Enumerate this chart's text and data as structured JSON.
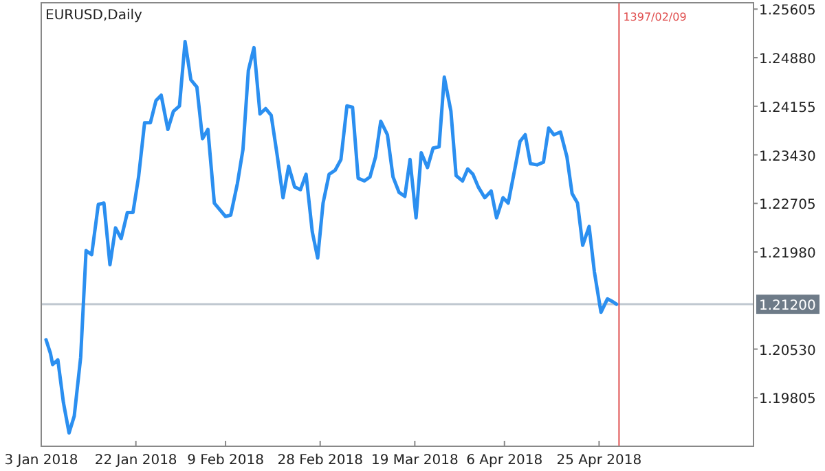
{
  "chart_data": {
    "type": "line",
    "title": "EURUSD,Daily",
    "x": [
      "2018-01-03T23:00",
      "2018-01-04T20:00",
      "2018-01-05T07:00",
      "2018-01-06T08:00",
      "2018-01-07T11:00",
      "2018-01-08T14:00",
      "2018-01-09T15:00",
      "2018-01-10T22:00",
      "2018-01-12T00:00",
      "2018-01-13T03:00",
      "2018-01-14T11:00",
      "2018-01-15T14:00",
      "2018-01-16T19:00",
      "2018-01-17T22:00",
      "2018-01-19T01:00",
      "2018-01-20T07:00",
      "2018-01-21T10:00",
      "2018-01-22T13:00",
      "2018-01-23T18:00",
      "2018-01-24T22:00",
      "2018-01-26T01:00",
      "2018-01-27T02:00",
      "2018-01-28T10:00",
      "2018-01-29T13:00",
      "2018-01-30T18:00",
      "2018-01-31T21:00",
      "2018-02-02T01:00",
      "2018-02-03T06:00",
      "2018-02-04T09:00",
      "2018-02-05T11:00",
      "2018-02-06T18:00",
      "2018-02-07T21:00",
      "2018-02-09T00:00",
      "2018-02-10T01:00",
      "2018-02-11T09:00",
      "2018-02-12T12:00",
      "2018-02-13T14:00",
      "2018-02-14T17:00",
      "2018-02-15T22:00",
      "2018-02-17T01:00",
      "2018-02-18T04:00",
      "2018-02-19T10:00",
      "2018-02-20T13:00",
      "2018-02-21T16:00",
      "2018-02-22T21:00",
      "2018-02-24T01:00",
      "2018-02-25T04:00",
      "2018-02-26T10:00",
      "2018-02-27T12:00",
      "2018-02-28T14:00",
      "2018-03-01T19:00",
      "2018-03-03T00:00",
      "2018-03-04T04:00",
      "2018-03-05T09:00",
      "2018-03-06T12:00",
      "2018-03-07T15:00",
      "2018-03-08T21:00",
      "2018-03-10T00:00",
      "2018-03-11T03:00",
      "2018-03-12T04:00",
      "2018-03-13T12:00",
      "2018-03-14T15:00",
      "2018-03-15T20:00",
      "2018-03-17T00:00",
      "2018-03-18T01:00",
      "2018-03-19T06:00",
      "2018-03-20T07:00",
      "2018-03-21T13:00",
      "2018-03-22T16:00",
      "2018-03-23T21:00",
      "2018-03-24T22:00",
      "2018-03-26T06:00",
      "2018-03-27T07:00",
      "2018-03-28T14:00",
      "2018-03-29T15:00",
      "2018-03-30T16:00",
      "2018-03-31T18:00",
      "2018-04-02T01:00",
      "2018-04-03T08:00",
      "2018-04-04T10:00",
      "2018-04-05T17:00",
      "2018-04-06T18:00",
      "2018-04-08T02:00",
      "2018-04-09T03:00",
      "2018-04-10T04:00",
      "2018-04-11T05:00",
      "2018-04-12T13:00",
      "2018-04-13T20:00",
      "2018-04-14T21:00",
      "2018-04-15T22:00",
      "2018-04-17T06:00",
      "2018-04-18T13:00",
      "2018-04-19T14:00",
      "2018-04-20T16:00",
      "2018-04-21T17:00",
      "2018-04-23T00:00",
      "2018-04-24T01:00",
      "2018-04-25T09:00",
      "2018-04-26T16:00",
      "2018-04-27T17:00",
      "2018-04-28T12:00"
    ],
    "series": [
      {
        "color": "#2b8ff0",
        "values": [
          1.2067,
          1.2047,
          1.203,
          1.2037,
          1.1973,
          1.1928,
          1.1953,
          1.2041,
          1.22,
          1.2194,
          1.2269,
          1.2271,
          1.2179,
          1.2234,
          1.2218,
          1.2257,
          1.2257,
          1.231,
          1.2391,
          1.2391,
          1.2424,
          1.2432,
          1.2381,
          1.2408,
          1.2416,
          1.2512,
          1.2455,
          1.2444,
          1.2367,
          1.2381,
          1.2271,
          1.2261,
          1.2251,
          1.2253,
          1.23,
          1.2351,
          1.2469,
          1.2503,
          1.2404,
          1.2412,
          1.2402,
          1.234,
          1.2279,
          1.2326,
          1.2295,
          1.2291,
          1.2314,
          1.2228,
          1.2189,
          1.2271,
          1.2314,
          1.232,
          1.2336,
          1.2416,
          1.2414,
          1.2308,
          1.2304,
          1.231,
          1.234,
          1.2393,
          1.2373,
          1.231,
          1.2287,
          1.2281,
          1.2336,
          1.2249,
          1.2346,
          1.2324,
          1.2353,
          1.2355,
          1.2459,
          1.2408,
          1.2312,
          1.2304,
          1.2322,
          1.2314,
          1.2295,
          1.2279,
          1.2289,
          1.2249,
          1.2279,
          1.2271,
          1.2322,
          1.2363,
          1.2373,
          1.233,
          1.2328,
          1.2332,
          1.2383,
          1.2373,
          1.2377,
          1.234,
          1.2285,
          1.2271,
          1.2208,
          1.2236,
          1.2169,
          1.2108,
          1.2128,
          1.2124,
          1.212
        ]
      }
    ],
    "xlim": [
      "2018-01-03",
      "2018-05-26"
    ],
    "xticks": [
      {
        "value": "2018-01-03",
        "label": "3 Jan 2018"
      },
      {
        "value": "2018-01-22",
        "label": "22 Jan 2018"
      },
      {
        "value": "2018-02-09",
        "label": "9 Feb 2018"
      },
      {
        "value": "2018-02-28",
        "label": "28 Feb 2018"
      },
      {
        "value": "2018-03-19",
        "label": "19 Mar 2018"
      },
      {
        "value": "2018-04-06",
        "label": "6 Apr 2018"
      },
      {
        "value": "2018-04-25",
        "label": "25 Apr 2018"
      }
    ],
    "ylim": [
      1.1908,
      1.257
    ],
    "yticks": [
      1.25605,
      {
        "value": 1.2488,
        "label": "1.24880"
      },
      1.24155,
      {
        "value": 1.2343,
        "label": "1.23430"
      },
      1.22705,
      {
        "value": 1.2198,
        "label": "1.21980"
      },
      {
        "value": 1.2053,
        "label": "1.20530"
      },
      1.19805
    ],
    "ref_lines": [
      {
        "axis": "y",
        "value": 1.212,
        "label": "1.21200",
        "color": "#c0c8d0"
      },
      {
        "axis": "x",
        "value": "2018-04-29",
        "label": "1397/02/09",
        "color": "#e05050"
      }
    ],
    "grid": false,
    "marker": "none",
    "line_style": "solid"
  }
}
